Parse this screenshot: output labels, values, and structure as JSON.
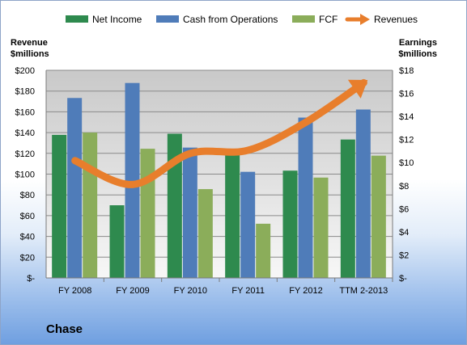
{
  "chart_data": {
    "type": "bar",
    "categories": [
      "FY 2008",
      "FY 2009",
      "FY 2010",
      "FY 2011",
      "FY 2012",
      "TTM 2-2013"
    ],
    "series": [
      {
        "name": "Net Income",
        "axis": "right",
        "color": "#2e8a4e",
        "values": [
          12.4,
          6.3,
          12.5,
          11.0,
          9.3,
          12.0
        ]
      },
      {
        "name": "Cash from Operations",
        "axis": "right",
        "color": "#4f7cb9",
        "values": [
          15.6,
          16.9,
          11.3,
          9.2,
          13.9,
          14.6
        ]
      },
      {
        "name": "FCF",
        "axis": "right",
        "color": "#8bad5a",
        "values": [
          12.6,
          11.2,
          7.7,
          4.7,
          8.7,
          10.6
        ]
      }
    ],
    "line_series": {
      "name": "Revenues",
      "axis": "left",
      "type": "arrow-line",
      "color": "#e87e2c",
      "values": [
        113,
        90,
        120,
        123,
        150,
        188
      ]
    },
    "left_axis": {
      "label_line1": "Revenue",
      "label_line2": "$millions",
      "ylim": [
        0,
        200
      ],
      "ticks": [
        "$-",
        "$20",
        "$40",
        "$60",
        "$80",
        "$100",
        "$120",
        "$140",
        "$160",
        "$180",
        "$200"
      ]
    },
    "right_axis": {
      "label_line1": "Earnings",
      "label_line2": "$millions",
      "ylim": [
        0,
        18
      ],
      "ticks": [
        "$-",
        "$2",
        "$4",
        "$6",
        "$8",
        "$10",
        "$12",
        "$14",
        "$16",
        "$18"
      ]
    },
    "legend_position": "top",
    "grid": true
  },
  "company": "Chase"
}
